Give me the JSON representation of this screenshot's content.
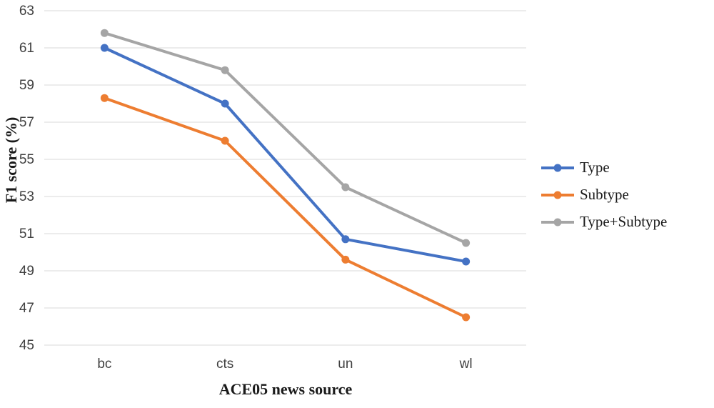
{
  "chart_data": {
    "type": "line",
    "title": "",
    "xlabel": "ACE05 news source",
    "ylabel": "F1 score (%)",
    "categories": [
      "bc",
      "cts",
      "un",
      "wl"
    ],
    "series": [
      {
        "name": "Type",
        "color": "#4472C4",
        "values": [
          61.0,
          58.0,
          50.7,
          49.5
        ]
      },
      {
        "name": "Subtype",
        "color": "#ED7D31",
        "values": [
          58.3,
          56.0,
          49.6,
          46.5
        ]
      },
      {
        "name": "Type+Subtype",
        "color": "#A5A5A5",
        "values": [
          61.8,
          59.8,
          53.5,
          50.5
        ]
      }
    ],
    "ylim": [
      45,
      63
    ],
    "ytick_step": 2,
    "yticks": [
      45,
      47,
      49,
      51,
      53,
      55,
      57,
      59,
      61,
      63
    ],
    "grid": true,
    "gridline_color": "#D9D9D9",
    "tick_label_color": "#404040",
    "legend_position": "right"
  }
}
